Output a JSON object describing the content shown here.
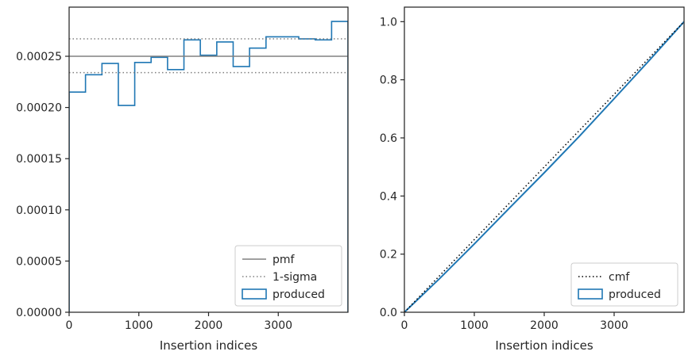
{
  "chart_data": [
    {
      "type": "line",
      "subtype": "step-histogram",
      "title": "",
      "xlabel": "Insertion indices",
      "ylabel": "",
      "xlim": [
        0,
        4000
      ],
      "ylim": [
        0,
        0.000298
      ],
      "xticks": [
        0,
        1000,
        2000,
        3000
      ],
      "xtick_labels": [
        "0",
        "1000",
        "2000",
        "3000"
      ],
      "yticks": [
        0,
        5e-05,
        0.0001,
        0.00015,
        0.0002,
        0.00025
      ],
      "ytick_labels": [
        "0.00000",
        "0.00005",
        "0.00010",
        "0.00015",
        "0.00020",
        "0.00025"
      ],
      "grid": false,
      "legend_position": "bottom-right",
      "legend": [
        "pmf",
        "1-sigma",
        "produced"
      ],
      "series": [
        {
          "name": "produced",
          "style": "step",
          "color": "#1f77b4",
          "bin_edges": [
            0,
            235,
            471,
            706,
            941,
            1176,
            1412,
            1647,
            1882,
            2118,
            2353,
            2588,
            2824,
            3059,
            3294,
            3529,
            3765,
            4000
          ],
          "values": [
            0.000215,
            0.000232,
            0.000243,
            0.000202,
            0.000244,
            0.000249,
            0.000237,
            0.000266,
            0.000251,
            0.000264,
            0.00024,
            0.000258,
            0.000269,
            0.000269,
            0.000267,
            0.000266,
            0.000284
          ]
        },
        {
          "name": "pmf",
          "style": "solid",
          "color": "#808080",
          "y": 0.00025
        },
        {
          "name": "1-sigma",
          "style": "dotted",
          "color": "#808080",
          "y_values": [
            0.000267,
            0.000234
          ]
        }
      ]
    },
    {
      "type": "line",
      "title": "",
      "xlabel": "Insertion indices",
      "ylabel": "",
      "xlim": [
        0,
        4000
      ],
      "ylim": [
        0,
        1.05
      ],
      "xticks": [
        0,
        1000,
        2000,
        3000
      ],
      "xtick_labels": [
        "0",
        "1000",
        "2000",
        "3000"
      ],
      "yticks": [
        0,
        0.2,
        0.4,
        0.6,
        0.8,
        1.0
      ],
      "ytick_labels": [
        "0.0",
        "0.2",
        "0.4",
        "0.6",
        "0.8",
        "1.0"
      ],
      "grid": false,
      "legend_position": "bottom-right",
      "legend": [
        "cmf",
        "produced"
      ],
      "series": [
        {
          "name": "produced",
          "style": "step",
          "color": "#1f77b4",
          "x": [
            0,
            500,
            1000,
            1500,
            2000,
            2500,
            3000,
            3500,
            4000
          ],
          "y": [
            0,
            0.115,
            0.235,
            0.358,
            0.48,
            0.605,
            0.735,
            0.866,
            1.0
          ]
        },
        {
          "name": "cmf",
          "style": "dotted",
          "color": "#000000",
          "x": [
            0,
            4000
          ],
          "y": [
            0,
            1.0
          ]
        }
      ]
    }
  ]
}
